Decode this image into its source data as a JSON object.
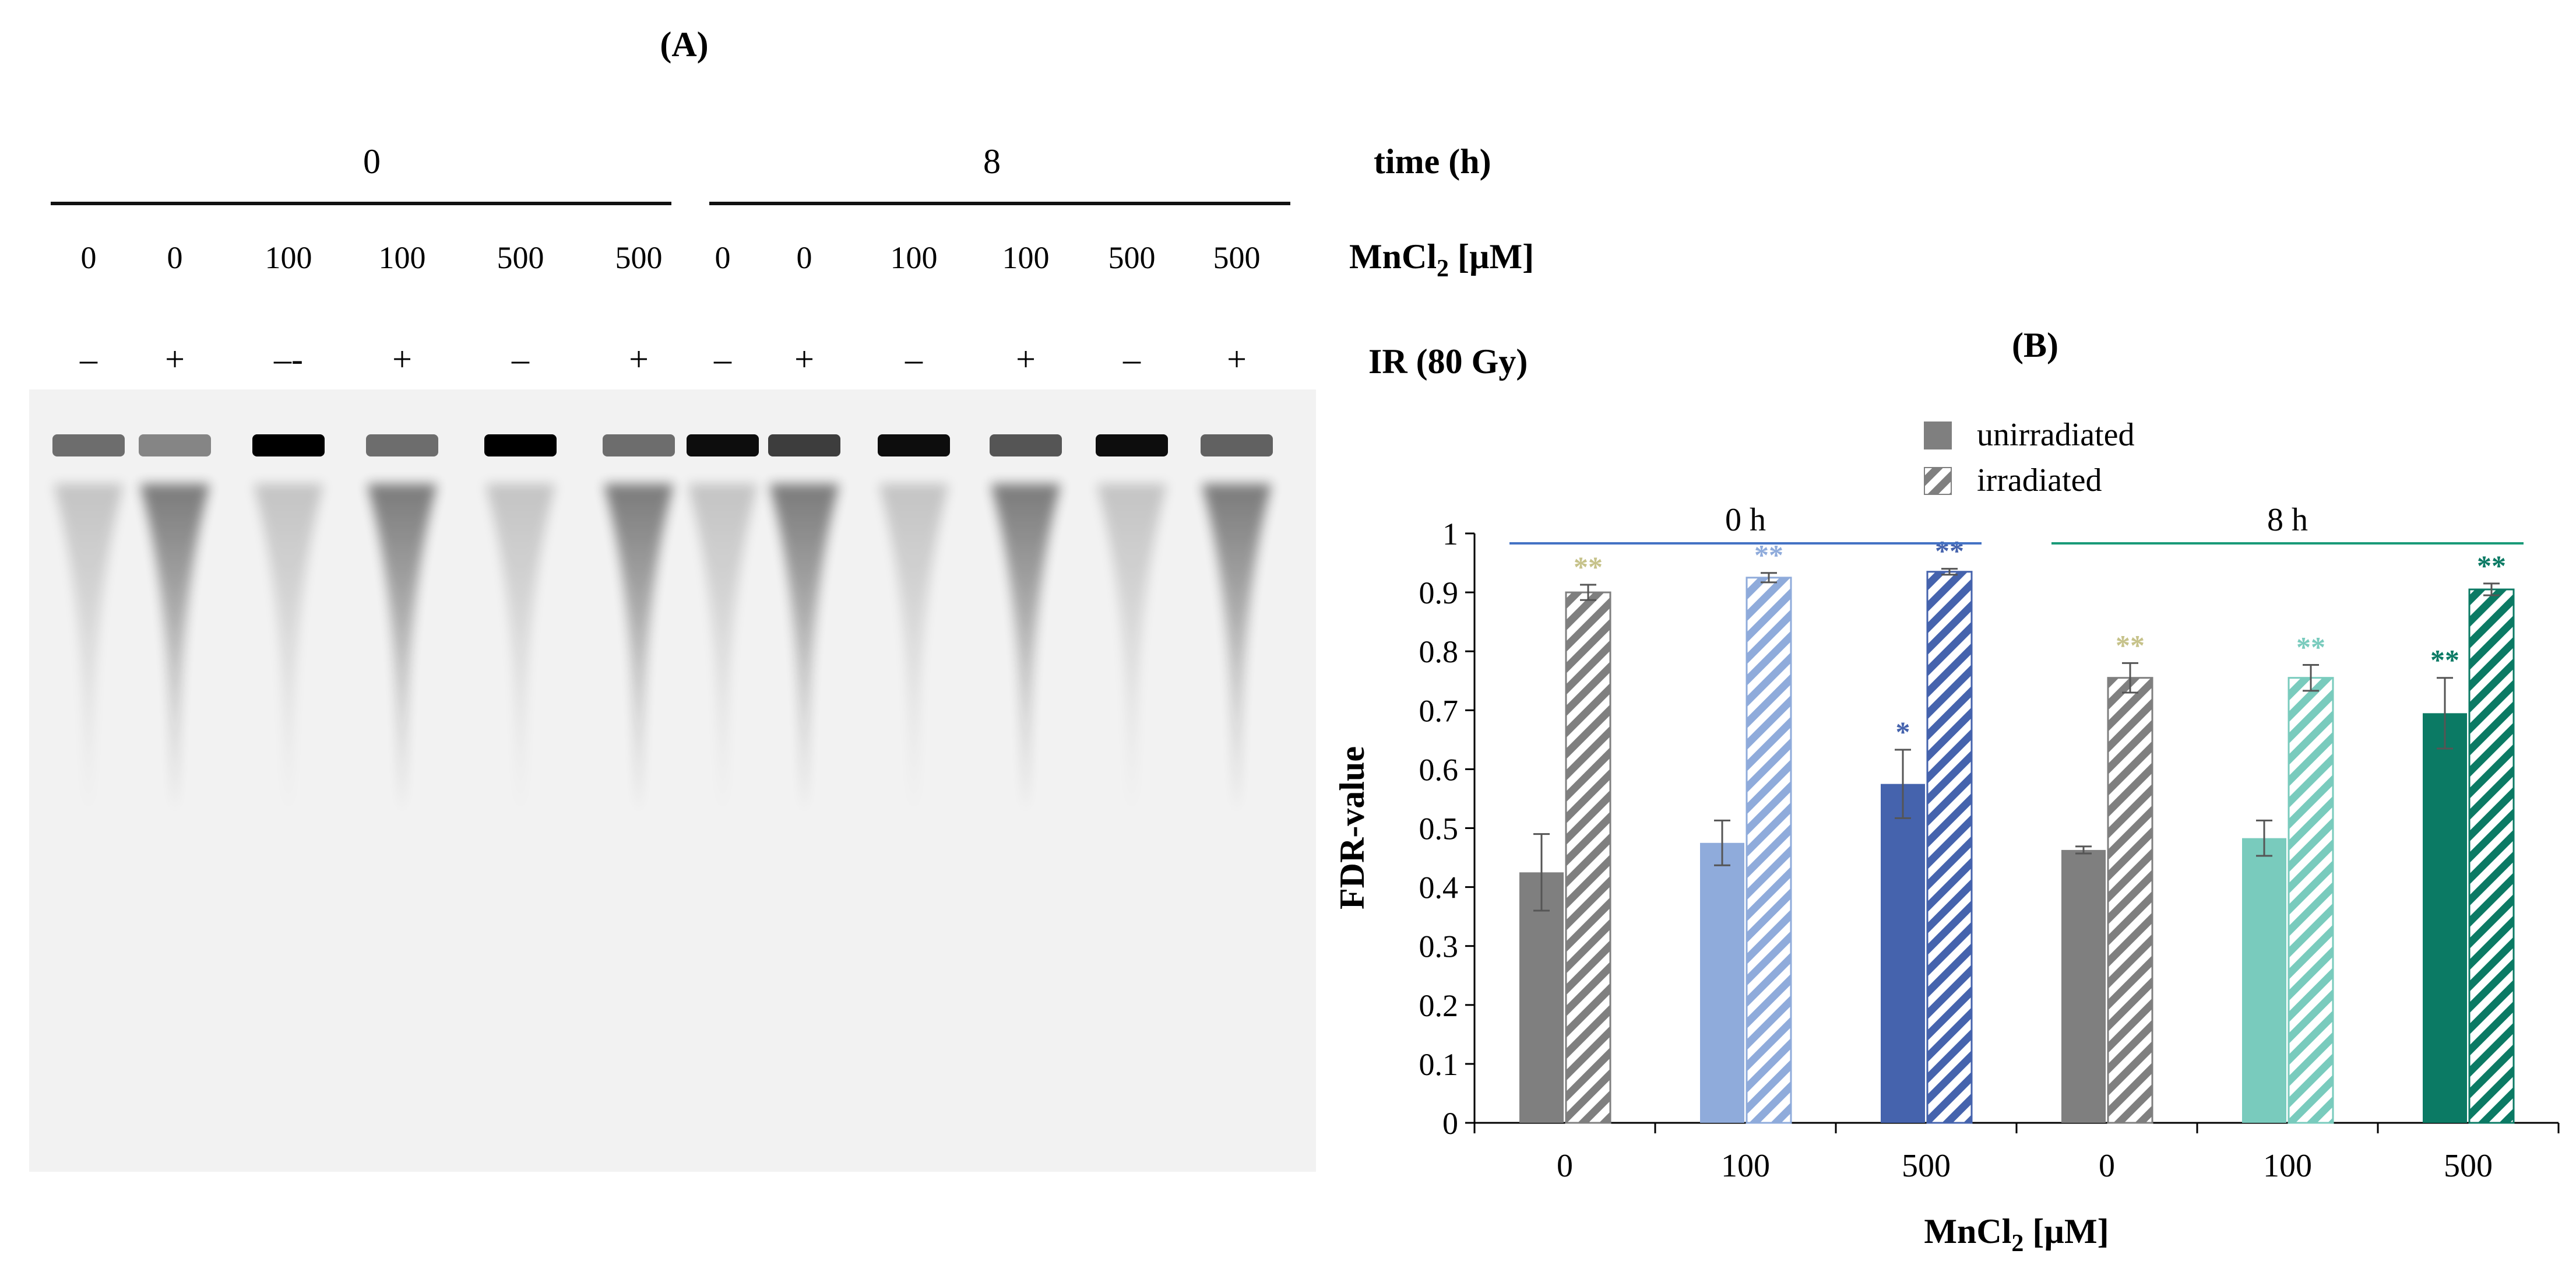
{
  "panel_a": {
    "label": "(A)",
    "time_row_label": "time (h)",
    "time_groups": [
      "0",
      "8"
    ],
    "mncl2_row_label_main": "MnCl",
    "mncl2_row_label_sub": "2",
    "mncl2_row_label_unit": " [µM]",
    "ir_row_label": "IR (80 Gy)",
    "lanes": [
      {
        "mn": "0",
        "ir": "–",
        "intensity": 0.55
      },
      {
        "mn": "0",
        "ir": "+",
        "intensity": 0.45
      },
      {
        "mn": "100",
        "ir": "–-",
        "intensity": 1.0
      },
      {
        "mn": "100",
        "ir": "+",
        "intensity": 0.55
      },
      {
        "mn": "500",
        "ir": "–",
        "intensity": 1.0
      },
      {
        "mn": "500",
        "ir": "+",
        "intensity": 0.55
      },
      {
        "mn": "0",
        "ir": "–",
        "intensity": 0.95
      },
      {
        "mn": "0",
        "ir": "+",
        "intensity": 0.75
      },
      {
        "mn": "100",
        "ir": "–",
        "intensity": 0.95
      },
      {
        "mn": "100",
        "ir": "+",
        "intensity": 0.65
      },
      {
        "mn": "500",
        "ir": "–",
        "intensity": 0.95
      },
      {
        "mn": "500",
        "ir": "+",
        "intensity": 0.6
      }
    ]
  },
  "chart_data": {
    "type": "bar",
    "panel_label": "(B)",
    "ylabel": "FDR-value",
    "xlabel_main": "MnCl",
    "xlabel_sub": "2",
    "xlabel_unit": " [µM]",
    "ylim": [
      0,
      1
    ],
    "yticks": [
      "0",
      "0.1",
      "0.2",
      "0.3",
      "0.4",
      "0.5",
      "0.6",
      "0.7",
      "0.8",
      "0.9",
      "1"
    ],
    "legend": [
      {
        "name": "unirradiated",
        "fill": "solid",
        "color": "#7f7f7f"
      },
      {
        "name": "irradiated",
        "fill": "hatched",
        "color": "#7f7f7f"
      }
    ],
    "legend_position": "top-center",
    "groups": [
      {
        "label": "0 h",
        "color": "#4472c4",
        "categories": [
          "0",
          "100",
          "500"
        ]
      },
      {
        "label": "8 h",
        "color": "#1a9a78",
        "categories": [
          "0",
          "100",
          "500"
        ]
      }
    ],
    "bars": [
      {
        "category": "0",
        "group": "0 h",
        "unirradiated": 0.425,
        "unirradiated_err": 0.065,
        "irradiated": 0.9,
        "irradiated_err": 0.013,
        "color": "#7f7f7f",
        "sig_unirradiated": "",
        "sig_irradiated": "**",
        "sig_color": "#c6c28a"
      },
      {
        "category": "100",
        "group": "0 h",
        "unirradiated": 0.475,
        "unirradiated_err": 0.038,
        "irradiated": 0.925,
        "irradiated_err": 0.008,
        "color": "#8fabdb",
        "sig_unirradiated": "",
        "sig_irradiated": "**",
        "sig_color": "#8fabdb"
      },
      {
        "category": "500",
        "group": "0 h",
        "unirradiated": 0.575,
        "unirradiated_err": 0.058,
        "irradiated": 0.935,
        "irradiated_err": 0.005,
        "color": "#4563ad",
        "sig_unirradiated": "*",
        "sig_irradiated": "**",
        "sig_color": "#4563ad"
      },
      {
        "category": "0",
        "group": "8 h",
        "unirradiated": 0.463,
        "unirradiated_err": 0.006,
        "irradiated": 0.755,
        "irradiated_err": 0.025,
        "color": "#7f7f7f",
        "sig_unirradiated": "",
        "sig_irradiated": "**",
        "sig_color": "#c6c28a"
      },
      {
        "category": "100",
        "group": "8 h",
        "unirradiated": 0.483,
        "unirradiated_err": 0.03,
        "irradiated": 0.755,
        "irradiated_err": 0.022,
        "color": "#79cbbd",
        "sig_unirradiated": "",
        "sig_irradiated": "**",
        "sig_color": "#79cbbd"
      },
      {
        "category": "500",
        "group": "8 h",
        "unirradiated": 0.695,
        "unirradiated_err": 0.06,
        "irradiated": 0.905,
        "irradiated_err": 0.01,
        "color": "#0b7a64",
        "sig_unirradiated": "**",
        "sig_irradiated": "**",
        "sig_color": "#0b7a64"
      }
    ]
  }
}
